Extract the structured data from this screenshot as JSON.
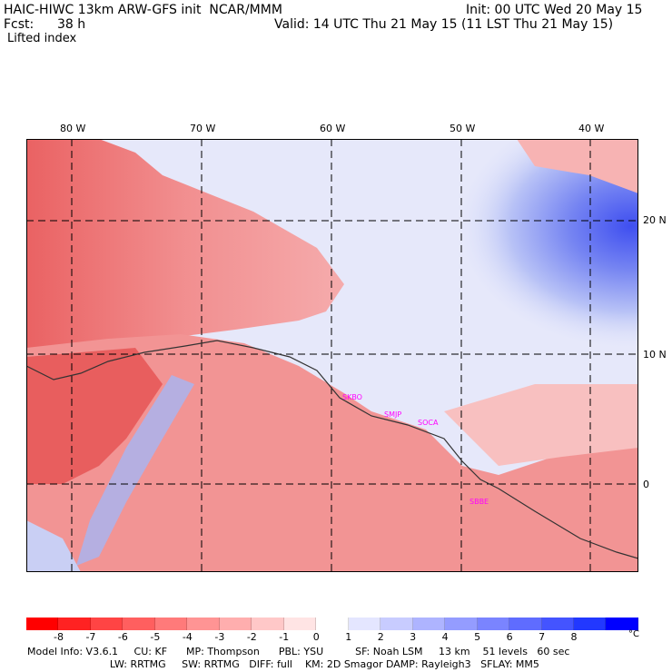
{
  "header": {
    "title_left": "HAIC-HIWC 13km ARW-GFS init  NCAR/MMM",
    "init": "Init: 00 UTC Wed 20 May 15",
    "fcst_label": "Fcst:",
    "fcst_value": "38 h",
    "valid": "Valid: 14 UTC Thu 21 May 15 (11 LST Thu 21 May 15)",
    "field": "Lifted index"
  },
  "map": {
    "lon_labels": [
      "80 W",
      "70 W",
      "60 W",
      "50 W",
      "40 W"
    ],
    "lat_labels": [
      "20 N",
      "10 N",
      "0"
    ],
    "stations": [
      "SKBO",
      "SMJP",
      "SOCA",
      "SBBE"
    ],
    "colors": {
      "land_warm": "#ef6b6b",
      "ocean_cool": "#b8c6f5",
      "deep_blue": "#4a5af0"
    }
  },
  "colorbar": {
    "labels": [
      "-8",
      "-7",
      "-6",
      "-5",
      "-4",
      "-3",
      "-2",
      "-1",
      "0",
      "1",
      "2",
      "3",
      "4",
      "5",
      "6",
      "7",
      "8"
    ],
    "unit": "°C",
    "colors": [
      "#ff0000",
      "#ff2222",
      "#ff4444",
      "#ff5f5f",
      "#ff7a7a",
      "#ff9494",
      "#ffaeae",
      "#ffc8c8",
      "#ffe4e4",
      "#ffffff",
      "#e4e6ff",
      "#c8ccff",
      "#aeb4ff",
      "#949cff",
      "#7a84ff",
      "#5f6cff",
      "#4454ff",
      "#2238ff",
      "#0000ff"
    ]
  },
  "footer": {
    "line1": "Model Info: V3.6.1     CU: KF      MP: Thompson      PBL: YSU          SF: Noah LSM     13 km    51 levels   60 sec",
    "line2": "                          LW: RRTMG     SW: RRTMG   DIFF: full    KM: 2D Smagor DAMP: Rayleigh3   SFLAY: MM5"
  }
}
